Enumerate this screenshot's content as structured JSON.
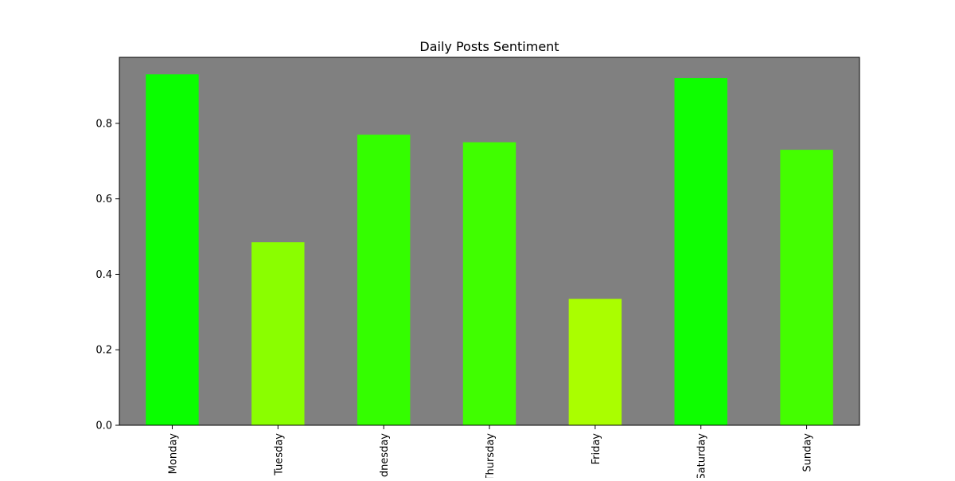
{
  "chart_data": {
    "type": "bar",
    "title": "Daily Posts Sentiment",
    "xlabel": "",
    "ylabel": "",
    "categories": [
      "Monday",
      "Tuesday",
      "Wednesday",
      "Thursday",
      "Friday",
      "Saturday",
      "Sunday"
    ],
    "values": [
      0.93,
      0.485,
      0.77,
      0.75,
      0.335,
      0.92,
      0.73
    ],
    "bar_colors": [
      "#0afe00",
      "#8afe00",
      "#34fe00",
      "#40fe00",
      "#aafe00",
      "#0efe00",
      "#44fe00"
    ],
    "ylim": [
      0,
      0.975
    ],
    "yticks": [
      "0.0",
      "0.2",
      "0.4",
      "0.6",
      "0.8"
    ],
    "grid": false,
    "legend": "none",
    "plot_background": "#808080"
  }
}
